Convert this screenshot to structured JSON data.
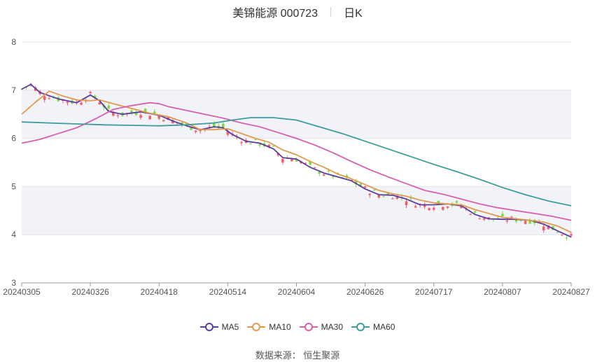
{
  "header": {
    "title": "美锦能源 000723",
    "period": "日K"
  },
  "source": "数据来源： 恒生聚源",
  "chart_data": {
    "type": "candlestick",
    "ylim": [
      3,
      8
    ],
    "yticks": [
      3,
      4,
      5,
      6,
      7,
      8
    ],
    "x_ticks": [
      "20240305",
      "20240326",
      "20240418",
      "20240514",
      "20240604",
      "20240626",
      "20240717",
      "20240807",
      "20240827"
    ],
    "x_tick_index": [
      0,
      15,
      30,
      45,
      60,
      75,
      90,
      105,
      120
    ],
    "n_days": 121,
    "bands": [
      [
        4,
        5
      ],
      [
        6,
        7
      ]
    ],
    "up_color": "#f0606a",
    "down_color": "#7cdb3e",
    "ma_lines": [
      {
        "name": "MA5",
        "color": "#5b3d9e",
        "points": [
          [
            0,
            7.02
          ],
          [
            2,
            7.12
          ],
          [
            4,
            6.95
          ],
          [
            8,
            6.82
          ],
          [
            12,
            6.74
          ],
          [
            15,
            6.9
          ],
          [
            17,
            6.78
          ],
          [
            19,
            6.56
          ],
          [
            22,
            6.5
          ],
          [
            26,
            6.55
          ],
          [
            30,
            6.48
          ],
          [
            33,
            6.36
          ],
          [
            36,
            6.26
          ],
          [
            39,
            6.18
          ],
          [
            42,
            6.24
          ],
          [
            44,
            6.22
          ],
          [
            46,
            6.08
          ],
          [
            49,
            5.94
          ],
          [
            52,
            5.9
          ],
          [
            55,
            5.78
          ],
          [
            57,
            5.6
          ],
          [
            60,
            5.57
          ],
          [
            63,
            5.4
          ],
          [
            66,
            5.28
          ],
          [
            69,
            5.2
          ],
          [
            72,
            5.12
          ],
          [
            75,
            4.95
          ],
          [
            78,
            4.83
          ],
          [
            81,
            4.82
          ],
          [
            84,
            4.74
          ],
          [
            87,
            4.62
          ],
          [
            90,
            4.62
          ],
          [
            93,
            4.64
          ],
          [
            96,
            4.6
          ],
          [
            99,
            4.42
          ],
          [
            102,
            4.33
          ],
          [
            105,
            4.32
          ],
          [
            108,
            4.32
          ],
          [
            111,
            4.3
          ],
          [
            114,
            4.22
          ],
          [
            117,
            4.08
          ],
          [
            120,
            3.95
          ]
        ]
      },
      {
        "name": "MA10",
        "color": "#e09a4c",
        "points": [
          [
            0,
            6.5
          ],
          [
            3,
            6.75
          ],
          [
            6,
            6.98
          ],
          [
            9,
            6.88
          ],
          [
            12,
            6.8
          ],
          [
            15,
            6.78
          ],
          [
            17,
            6.8
          ],
          [
            20,
            6.72
          ],
          [
            24,
            6.62
          ],
          [
            28,
            6.52
          ],
          [
            32,
            6.45
          ],
          [
            36,
            6.32
          ],
          [
            39,
            6.18
          ],
          [
            42,
            6.18
          ],
          [
            45,
            6.2
          ],
          [
            48,
            6.1
          ],
          [
            51,
            6.0
          ],
          [
            54,
            5.92
          ],
          [
            57,
            5.76
          ],
          [
            60,
            5.66
          ],
          [
            63,
            5.52
          ],
          [
            66,
            5.4
          ],
          [
            69,
            5.26
          ],
          [
            72,
            5.16
          ],
          [
            75,
            5.04
          ],
          [
            78,
            4.92
          ],
          [
            81,
            4.85
          ],
          [
            84,
            4.8
          ],
          [
            87,
            4.72
          ],
          [
            90,
            4.66
          ],
          [
            93,
            4.64
          ],
          [
            96,
            4.62
          ],
          [
            99,
            4.52
          ],
          [
            102,
            4.44
          ],
          [
            105,
            4.36
          ],
          [
            108,
            4.33
          ],
          [
            111,
            4.3
          ],
          [
            114,
            4.26
          ],
          [
            117,
            4.18
          ],
          [
            120,
            4.05
          ]
        ]
      },
      {
        "name": "MA30",
        "color": "#d85fae",
        "points": [
          [
            0,
            5.9
          ],
          [
            4,
            5.98
          ],
          [
            8,
            6.1
          ],
          [
            12,
            6.22
          ],
          [
            16,
            6.4
          ],
          [
            20,
            6.6
          ],
          [
            24,
            6.68
          ],
          [
            28,
            6.74
          ],
          [
            30,
            6.72
          ],
          [
            32,
            6.66
          ],
          [
            36,
            6.58
          ],
          [
            40,
            6.5
          ],
          [
            44,
            6.42
          ],
          [
            48,
            6.32
          ],
          [
            52,
            6.24
          ],
          [
            56,
            6.12
          ],
          [
            60,
            6.0
          ],
          [
            64,
            5.86
          ],
          [
            68,
            5.7
          ],
          [
            72,
            5.52
          ],
          [
            76,
            5.35
          ],
          [
            80,
            5.2
          ],
          [
            84,
            5.06
          ],
          [
            88,
            4.92
          ],
          [
            92,
            4.84
          ],
          [
            96,
            4.74
          ],
          [
            100,
            4.64
          ],
          [
            104,
            4.56
          ],
          [
            108,
            4.5
          ],
          [
            112,
            4.44
          ],
          [
            116,
            4.38
          ],
          [
            120,
            4.3
          ]
        ]
      },
      {
        "name": "MA60",
        "color": "#3d9d9b",
        "points": [
          [
            0,
            6.34
          ],
          [
            6,
            6.32
          ],
          [
            12,
            6.3
          ],
          [
            18,
            6.28
          ],
          [
            24,
            6.27
          ],
          [
            30,
            6.26
          ],
          [
            36,
            6.28
          ],
          [
            42,
            6.32
          ],
          [
            46,
            6.38
          ],
          [
            50,
            6.43
          ],
          [
            55,
            6.43
          ],
          [
            60,
            6.38
          ],
          [
            65,
            6.24
          ],
          [
            70,
            6.1
          ],
          [
            75,
            5.94
          ],
          [
            80,
            5.78
          ],
          [
            85,
            5.62
          ],
          [
            90,
            5.46
          ],
          [
            95,
            5.31
          ],
          [
            100,
            5.15
          ],
          [
            105,
            4.98
          ],
          [
            110,
            4.83
          ],
          [
            115,
            4.7
          ],
          [
            120,
            4.6
          ]
        ]
      }
    ]
  }
}
